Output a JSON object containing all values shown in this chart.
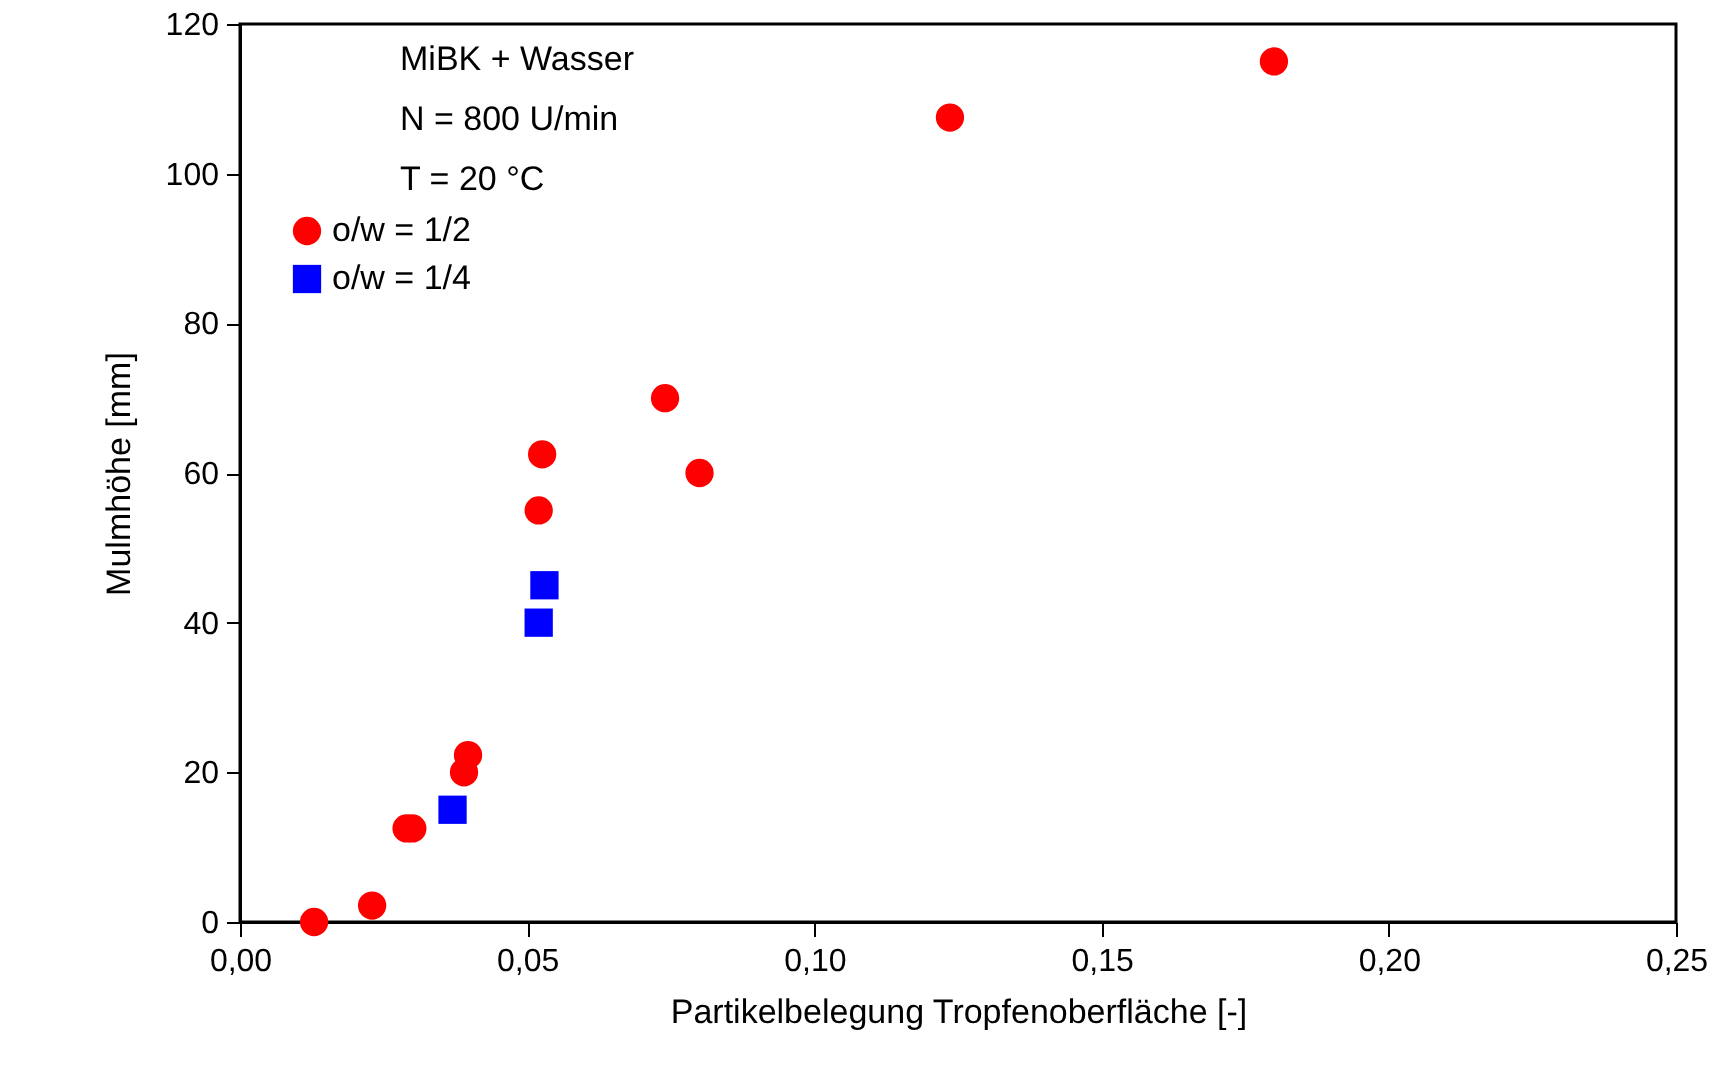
{
  "chart_data": {
    "type": "scatter",
    "xlabel": "Partikelbelegung Tropfenoberfläche [-]",
    "ylabel": "Mulmhöhe [mm]",
    "annotations": [
      "MiBK + Wasser",
      "N = 800 U/min",
      "T = 20 °C"
    ],
    "series": [
      {
        "name": "o/w = 1/2",
        "color": "#ff0000",
        "marker": "circle",
        "x": [
          0.0129,
          0.023,
          0.029,
          0.03,
          0.039,
          0.0397,
          0.052,
          0.0526,
          0.074,
          0.08,
          0.1236,
          0.18
        ],
        "values": [
          0,
          2.2,
          12.5,
          12.5,
          20,
          22.3,
          55,
          62.5,
          70,
          60,
          107.5,
          115
        ]
      },
      {
        "name": "o/w = 1/4",
        "color": "#0000ff",
        "marker": "square",
        "x": [
          0.037,
          0.052,
          0.053
        ],
        "values": [
          15,
          40,
          45
        ]
      }
    ],
    "xlim": [
      0,
      0.25
    ],
    "ylim": [
      0,
      120
    ],
    "xticks": [
      {
        "value": 0,
        "label": "0,00"
      },
      {
        "value": 0.05,
        "label": "0,05"
      },
      {
        "value": 0.1,
        "label": "0,10"
      },
      {
        "value": 0.15,
        "label": "0,15"
      },
      {
        "value": 0.2,
        "label": "0,20"
      },
      {
        "value": 0.25,
        "label": "0,25"
      }
    ],
    "yticks": [
      0,
      20,
      40,
      60,
      80,
      100,
      120
    ],
    "legend": "top left",
    "grid": false
  }
}
